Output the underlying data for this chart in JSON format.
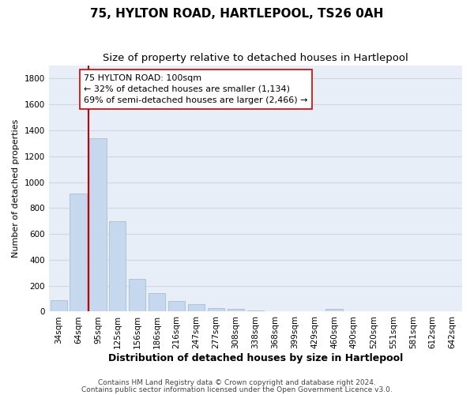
{
  "title": "75, HYLTON ROAD, HARTLEPOOL, TS26 0AH",
  "subtitle": "Size of property relative to detached houses in Hartlepool",
  "xlabel": "Distribution of detached houses by size in Hartlepool",
  "ylabel": "Number of detached properties",
  "categories": [
    "34sqm",
    "64sqm",
    "95sqm",
    "125sqm",
    "156sqm",
    "186sqm",
    "216sqm",
    "247sqm",
    "277sqm",
    "308sqm",
    "338sqm",
    "368sqm",
    "399sqm",
    "429sqm",
    "460sqm",
    "490sqm",
    "520sqm",
    "551sqm",
    "581sqm",
    "612sqm",
    "642sqm"
  ],
  "values": [
    90,
    910,
    1340,
    700,
    250,
    145,
    80,
    55,
    25,
    20,
    10,
    0,
    0,
    0,
    20,
    0,
    0,
    0,
    0,
    0,
    0
  ],
  "bar_color": "#c5d8ed",
  "bar_edge_color": "#a8bfd0",
  "vline_color": "#cc0000",
  "annotation_text": "75 HYLTON ROAD: 100sqm\n← 32% of detached houses are smaller (1,134)\n69% of semi-detached houses are larger (2,466) →",
  "annotation_box_color": "#ffffff",
  "annotation_box_edge": "#cc0000",
  "ylim": [
    0,
    1900
  ],
  "yticks": [
    0,
    200,
    400,
    600,
    800,
    1000,
    1200,
    1400,
    1600,
    1800
  ],
  "grid_color": "#d0d8e8",
  "bg_color": "#e8eef8",
  "footer1": "Contains HM Land Registry data © Crown copyright and database right 2024.",
  "footer2": "Contains public sector information licensed under the Open Government Licence v3.0.",
  "title_fontsize": 11,
  "subtitle_fontsize": 9.5,
  "xlabel_fontsize": 9,
  "ylabel_fontsize": 8,
  "tick_fontsize": 7.5,
  "footer_fontsize": 6.5
}
